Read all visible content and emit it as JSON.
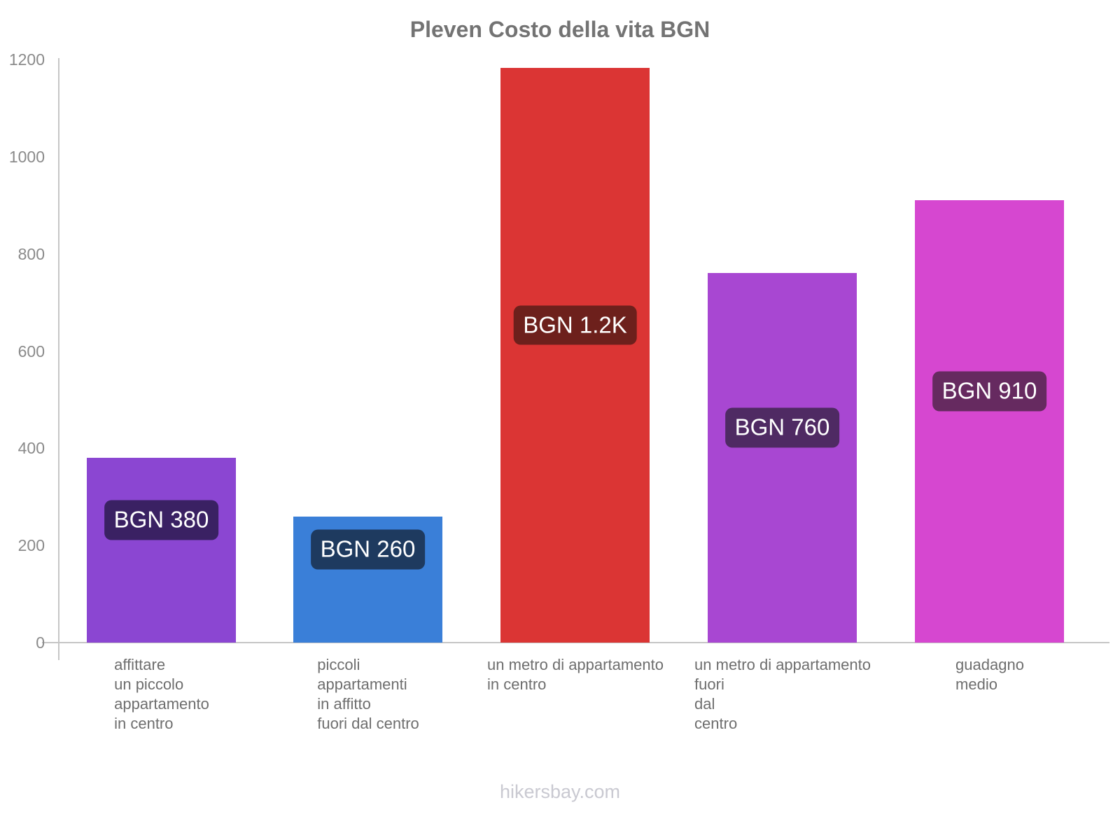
{
  "page": {
    "title": "Pleven Costo della vita BGN",
    "footer": "hikersbay.com"
  },
  "chart_data": {
    "type": "bar",
    "title": "Pleven Costo della vita BGN",
    "currency": "BGN",
    "xlabel": "",
    "ylabel": "",
    "ylim": [
      0,
      1200
    ],
    "yticks": [
      0,
      200,
      400,
      600,
      800,
      1000,
      1200
    ],
    "grid": false,
    "legend": false,
    "categories": [
      [
        "affittare",
        "un piccolo",
        "appartamento",
        "in centro"
      ],
      [
        "piccoli",
        "appartamenti",
        "in affitto",
        "fuori dal centro"
      ],
      [
        "un metro di appartamento",
        "in centro"
      ],
      [
        "un metro di appartamento",
        "fuori",
        "dal",
        "centro"
      ],
      [
        "guadagno",
        "medio"
      ]
    ],
    "values": [
      380,
      260,
      1183,
      760,
      910
    ],
    "value_labels": [
      "BGN 380",
      "BGN 260",
      "BGN 1.2K",
      "BGN 760",
      "BGN 910"
    ],
    "bar_colors": [
      "#8b46d2",
      "#3a7fd8",
      "#db3534",
      "#a847d2",
      "#d647d0"
    ],
    "label_bg_colors": [
      "#3a2163",
      "#1e3a5f",
      "#6d201c",
      "#4f2a63",
      "#662a60"
    ],
    "colors": {
      "axis": "#c6c6c6",
      "tick_label": "#8a8a8a",
      "category_label": "#6e6e6e",
      "title": "#737373",
      "footer": "#c9c9d1",
      "badge_text": "#ffffff"
    }
  }
}
